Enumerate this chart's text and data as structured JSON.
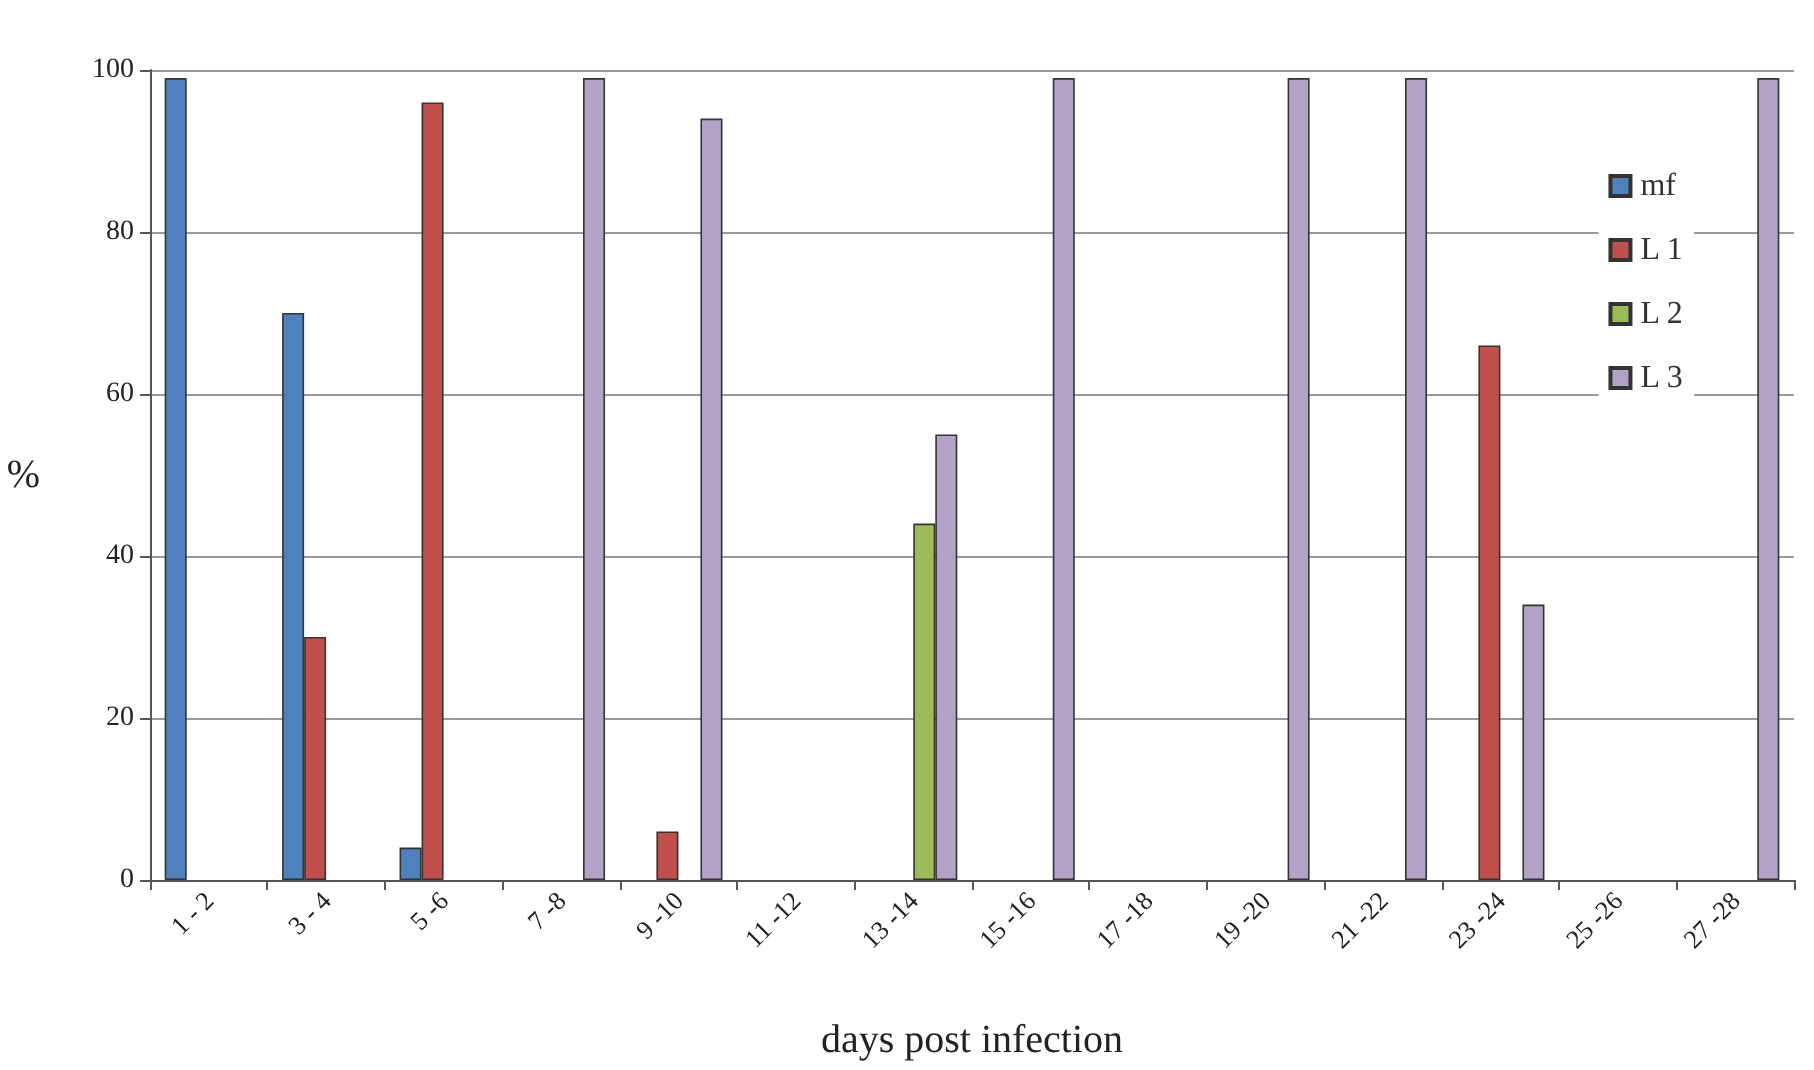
{
  "chart_data": {
    "type": "bar",
    "xlabel": "days post infection",
    "ylabel": "%",
    "categories": [
      "1 - 2",
      "3 - 4",
      "5 -6",
      "7 -8",
      "9 -10",
      "11 -12",
      "13 -14",
      "15 -16",
      "17 -18",
      "19 -20",
      "21 -22",
      "23 -24",
      "25 -26",
      "27 -28"
    ],
    "series": [
      {
        "name": "mf",
        "color": "#4f81bd",
        "values": [
          99,
          70,
          4,
          0,
          0,
          0,
          0,
          0,
          0,
          0,
          0,
          0,
          0,
          0
        ]
      },
      {
        "name": "L 1",
        "color": "#c0504d",
        "values": [
          0,
          30,
          96,
          0,
          6,
          0,
          0,
          0,
          0,
          0,
          0,
          66,
          0,
          0
        ]
      },
      {
        "name": "L 2",
        "color": "#9bbb59",
        "values": [
          0,
          0,
          0,
          0,
          0,
          0,
          44,
          0,
          0,
          0,
          0,
          0,
          0,
          0
        ]
      },
      {
        "name": "L 3",
        "color": "#b3a2c7",
        "values": [
          0,
          0,
          0,
          99,
          94,
          0,
          55,
          99,
          0,
          99,
          99,
          34,
          0,
          99
        ]
      }
    ],
    "ylim": [
      0,
      100
    ],
    "yticks": [
      0,
      20,
      40,
      60,
      80,
      100
    ],
    "grid": "y",
    "legend": "top right"
  }
}
